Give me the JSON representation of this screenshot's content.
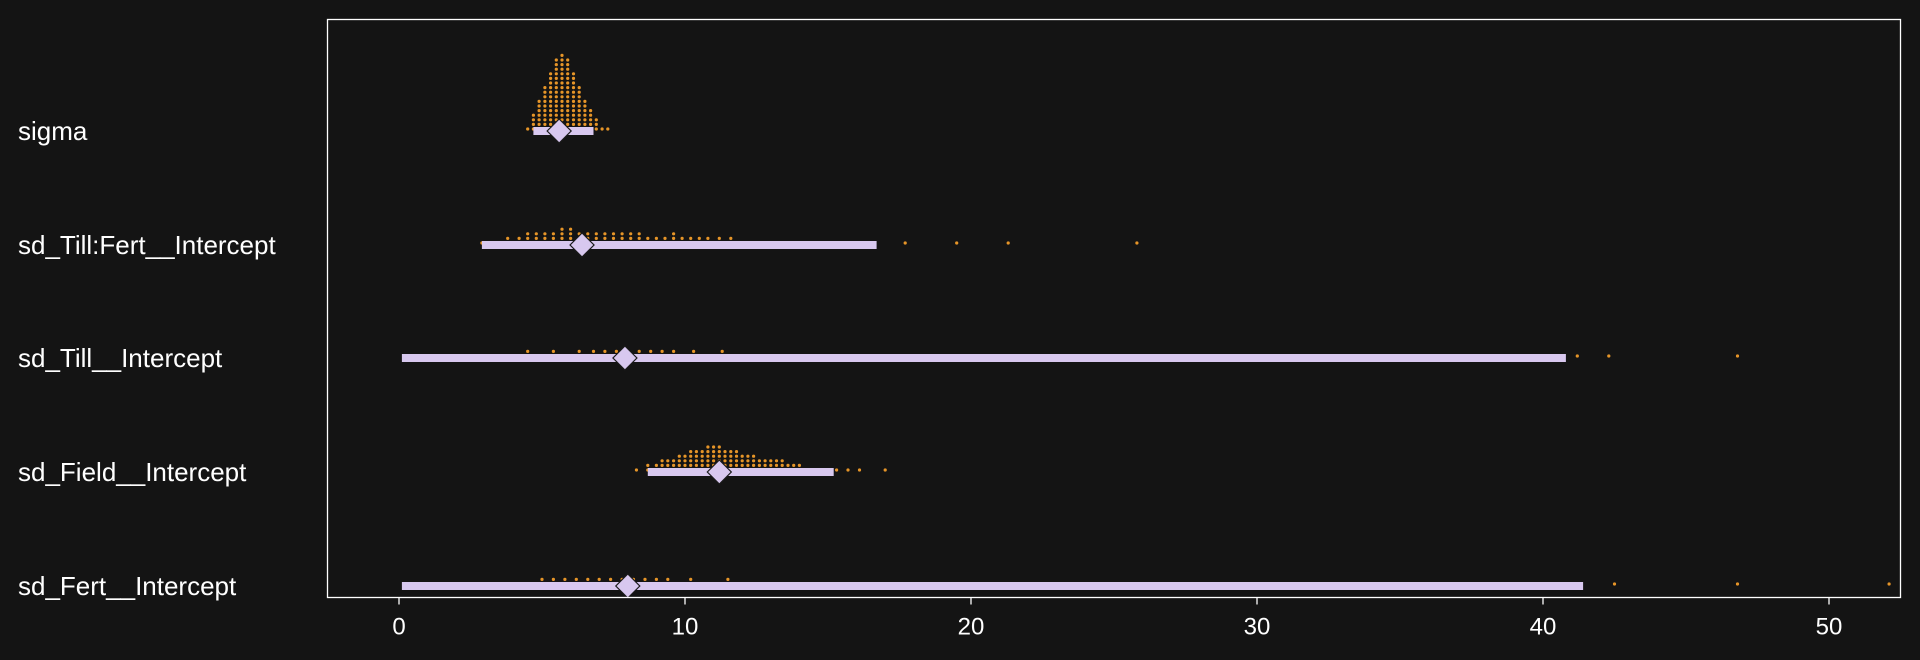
{
  "colors": {
    "background": "#141414",
    "frame": "#ffffff",
    "text": "#ffffff",
    "dots": "#e69528",
    "interval": "#d8c8ef",
    "marker": "#d8c8ef",
    "marker_edge": "#1a1a1a"
  },
  "chart_data": {
    "type": "scatter",
    "subtype": "dotplot-forest",
    "title": "",
    "xlabel": "",
    "ylabel": "",
    "xlim": [
      -2.5,
      52.5
    ],
    "xticks": [
      0,
      10,
      20,
      30,
      40,
      50
    ],
    "xtick_labels": [
      "0",
      "10",
      "20",
      "30",
      "40",
      "50"
    ],
    "grid": false,
    "legend": "none",
    "rows": [
      {
        "label": "sigma",
        "point_estimate": 5.6,
        "interval": [
          4.7,
          6.8
        ],
        "dots": [
          [
            4.5,
            1
          ],
          [
            4.7,
            4
          ],
          [
            4.9,
            7
          ],
          [
            5.1,
            10
          ],
          [
            5.3,
            13
          ],
          [
            5.5,
            16
          ],
          [
            5.7,
            17
          ],
          [
            5.9,
            16
          ],
          [
            6.1,
            13
          ],
          [
            6.3,
            10
          ],
          [
            6.5,
            7
          ],
          [
            6.7,
            5
          ],
          [
            6.9,
            3
          ],
          [
            7.1,
            1
          ],
          [
            7.3,
            1
          ]
        ]
      },
      {
        "label": "sd_Till:Fert__Intercept",
        "point_estimate": 6.4,
        "interval": [
          2.9,
          16.7
        ],
        "dots": [
          [
            2.9,
            1
          ],
          [
            3.4,
            1
          ],
          [
            3.8,
            2
          ],
          [
            4.2,
            2
          ],
          [
            4.5,
            3
          ],
          [
            4.8,
            3
          ],
          [
            5.1,
            3
          ],
          [
            5.4,
            3
          ],
          [
            5.7,
            4
          ],
          [
            6.0,
            4
          ],
          [
            6.3,
            3
          ],
          [
            6.6,
            3
          ],
          [
            6.9,
            3
          ],
          [
            7.2,
            3
          ],
          [
            7.5,
            3
          ],
          [
            7.8,
            3
          ],
          [
            8.1,
            3
          ],
          [
            8.4,
            3
          ],
          [
            8.7,
            2
          ],
          [
            9.0,
            2
          ],
          [
            9.3,
            2
          ],
          [
            9.6,
            3
          ],
          [
            9.9,
            2
          ],
          [
            10.2,
            2
          ],
          [
            10.5,
            2
          ],
          [
            10.8,
            2
          ],
          [
            11.2,
            2
          ],
          [
            11.6,
            2
          ],
          [
            12.0,
            1
          ],
          [
            12.5,
            1
          ],
          [
            13.0,
            1
          ],
          [
            13.6,
            1
          ],
          [
            14.2,
            1
          ],
          [
            14.9,
            1
          ],
          [
            15.7,
            1
          ],
          [
            16.6,
            1
          ],
          [
            17.7,
            1
          ],
          [
            19.5,
            1
          ],
          [
            21.3,
            1
          ],
          [
            25.8,
            1
          ]
        ]
      },
      {
        "label": "sd_Till__Intercept",
        "point_estimate": 7.9,
        "interval": [
          0.1,
          40.8
        ],
        "dots": [
          [
            0.2,
            1
          ],
          [
            0.7,
            1
          ],
          [
            1.2,
            1
          ],
          [
            1.7,
            1
          ],
          [
            2.2,
            1
          ],
          [
            2.7,
            1
          ],
          [
            3.2,
            1
          ],
          [
            3.7,
            1
          ],
          [
            4.2,
            1
          ],
          [
            4.5,
            2
          ],
          [
            5.0,
            1
          ],
          [
            5.4,
            2
          ],
          [
            5.8,
            1
          ],
          [
            6.3,
            2
          ],
          [
            6.8,
            2
          ],
          [
            7.2,
            2
          ],
          [
            7.6,
            2
          ],
          [
            8.0,
            2
          ],
          [
            8.4,
            2
          ],
          [
            8.8,
            2
          ],
          [
            9.2,
            2
          ],
          [
            9.6,
            2
          ],
          [
            10.0,
            1
          ],
          [
            10.3,
            2
          ],
          [
            10.8,
            1
          ],
          [
            11.3,
            2
          ],
          [
            11.8,
            1
          ],
          [
            12.3,
            1
          ],
          [
            12.8,
            1
          ],
          [
            13.4,
            1
          ],
          [
            14.0,
            1
          ],
          [
            14.6,
            1
          ],
          [
            15.2,
            1
          ],
          [
            15.9,
            1
          ],
          [
            16.6,
            1
          ],
          [
            17.3,
            1
          ],
          [
            18.1,
            1
          ],
          [
            18.9,
            1
          ],
          [
            19.8,
            1
          ],
          [
            20.8,
            1
          ],
          [
            21.8,
            1
          ],
          [
            22.9,
            1
          ],
          [
            24.0,
            1
          ],
          [
            25.2,
            1
          ],
          [
            26.5,
            1
          ],
          [
            28.0,
            1
          ],
          [
            29.7,
            1
          ],
          [
            31.5,
            1
          ],
          [
            33.5,
            1
          ],
          [
            35.7,
            1
          ],
          [
            38.3,
            1
          ],
          [
            41.2,
            1
          ],
          [
            42.3,
            1
          ],
          [
            46.8,
            1
          ]
        ]
      },
      {
        "label": "sd_Field__Intercept",
        "point_estimate": 11.2,
        "interval": [
          8.7,
          15.2
        ],
        "dots": [
          [
            8.3,
            1
          ],
          [
            8.7,
            2
          ],
          [
            9.0,
            2
          ],
          [
            9.2,
            3
          ],
          [
            9.4,
            3
          ],
          [
            9.6,
            3
          ],
          [
            9.8,
            4
          ],
          [
            10.0,
            4
          ],
          [
            10.2,
            5
          ],
          [
            10.4,
            5
          ],
          [
            10.6,
            5
          ],
          [
            10.8,
            6
          ],
          [
            11.0,
            6
          ],
          [
            11.2,
            6
          ],
          [
            11.4,
            5
          ],
          [
            11.6,
            5
          ],
          [
            11.8,
            5
          ],
          [
            12.0,
            4
          ],
          [
            12.2,
            4
          ],
          [
            12.4,
            4
          ],
          [
            12.6,
            3
          ],
          [
            12.8,
            3
          ],
          [
            13.0,
            3
          ],
          [
            13.2,
            3
          ],
          [
            13.4,
            3
          ],
          [
            13.6,
            2
          ],
          [
            13.8,
            2
          ],
          [
            14.0,
            2
          ],
          [
            14.3,
            1
          ],
          [
            14.6,
            1
          ],
          [
            15.0,
            1
          ],
          [
            15.3,
            1
          ],
          [
            15.7,
            1
          ],
          [
            16.1,
            1
          ],
          [
            17.0,
            1
          ]
        ]
      },
      {
        "label": "sd_Fert__Intercept",
        "point_estimate": 8.0,
        "interval": [
          0.1,
          41.4
        ],
        "dots": [
          [
            0.2,
            1
          ],
          [
            0.7,
            1
          ],
          [
            1.2,
            1
          ],
          [
            1.7,
            1
          ],
          [
            2.2,
            1
          ],
          [
            2.7,
            1
          ],
          [
            3.2,
            1
          ],
          [
            3.7,
            1
          ],
          [
            4.2,
            1
          ],
          [
            4.6,
            1
          ],
          [
            5.0,
            2
          ],
          [
            5.4,
            2
          ],
          [
            5.8,
            2
          ],
          [
            6.2,
            2
          ],
          [
            6.6,
            2
          ],
          [
            7.0,
            2
          ],
          [
            7.4,
            2
          ],
          [
            7.8,
            2
          ],
          [
            8.2,
            2
          ],
          [
            8.6,
            2
          ],
          [
            9.0,
            2
          ],
          [
            9.4,
            2
          ],
          [
            9.8,
            1
          ],
          [
            10.2,
            2
          ],
          [
            10.7,
            1
          ],
          [
            11.2,
            1
          ],
          [
            11.5,
            2
          ],
          [
            12.0,
            1
          ],
          [
            12.5,
            1
          ],
          [
            13.0,
            1
          ],
          [
            13.6,
            1
          ],
          [
            14.2,
            1
          ],
          [
            14.8,
            1
          ],
          [
            15.5,
            1
          ],
          [
            16.2,
            1
          ],
          [
            16.9,
            1
          ],
          [
            17.7,
            1
          ],
          [
            18.5,
            1
          ],
          [
            19.4,
            1
          ],
          [
            20.3,
            1
          ],
          [
            21.3,
            1
          ],
          [
            22.4,
            1
          ],
          [
            23.5,
            1
          ],
          [
            24.7,
            1
          ],
          [
            26.0,
            1
          ],
          [
            27.4,
            1
          ],
          [
            28.9,
            1
          ],
          [
            30.5,
            1
          ],
          [
            32.3,
            1
          ],
          [
            34.2,
            1
          ],
          [
            36.3,
            1
          ],
          [
            38.5,
            1
          ],
          [
            40.9,
            1
          ],
          [
            42.5,
            1
          ],
          [
            46.8,
            1
          ],
          [
            52.1,
            1
          ]
        ]
      }
    ]
  }
}
